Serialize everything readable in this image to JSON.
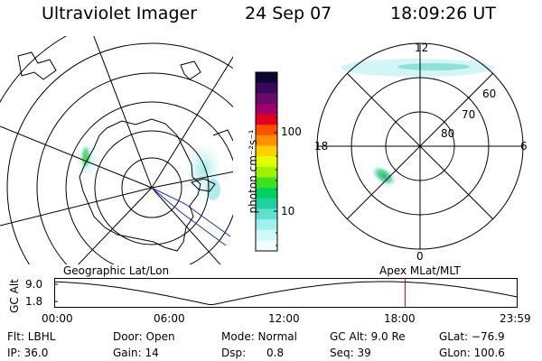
{
  "header": {
    "title": "Ultraviolet Imager",
    "date": "24 Sep 07",
    "time": "18:09:26 UT"
  },
  "colorbar": {
    "label": "photon cm⁻²s⁻¹",
    "ticks": [
      "100",
      "10"
    ],
    "colors": [
      "#0a0630",
      "#3a0a5a",
      "#6a0a6a",
      "#a0006a",
      "#e00020",
      "#ff5000",
      "#ff9000",
      "#ffd000",
      "#e0ff00",
      "#a0f000",
      "#40e020",
      "#00d060",
      "#20d0a0",
      "#60e0d0",
      "#a0f0f0",
      "#d0f8f8",
      "#f0ffff"
    ]
  },
  "left_map": {
    "label": "Geographic Lat/Lon"
  },
  "right_map": {
    "label": "Apex MLat/MLT",
    "mlt_labels": {
      "top": "12",
      "bottom": "0",
      "left": "18",
      "right": "6"
    },
    "lat_labels": [
      "60",
      "70",
      "80"
    ]
  },
  "altitude_plot": {
    "axis_label": "GC Alt",
    "y_ticks": [
      "9.0",
      "1.8"
    ],
    "x_ticks": [
      "00:00",
      "06:00",
      "12:00",
      "18:00",
      "23:59"
    ],
    "current_time_hours": 18.157,
    "marker_color": "#c00000"
  },
  "info": {
    "filter": "Flt: LBHL",
    "door": "Door: Open",
    "mode": "Mode: Normal",
    "gc_alt": "GC Alt: 9.0 Re",
    "glat": "GLat: −76.9",
    "ip": "IP: 36.0",
    "gain": "Gain: 14",
    "dsp": "Dsp:      0.8",
    "seq": "Seq: 39",
    "glon": "GLon: 100.6"
  }
}
